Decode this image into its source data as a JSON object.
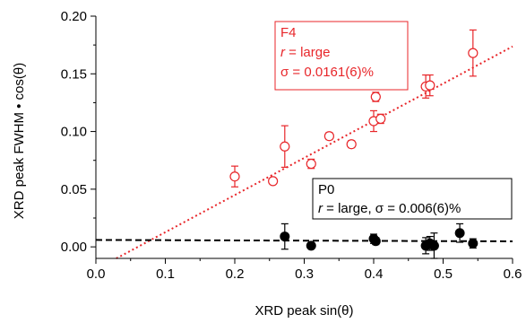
{
  "chart_data": {
    "type": "scatter",
    "xlabel": "XRD peak sin(θ)",
    "ylabel": "XRD peak FWHM • cos(θ)",
    "xlim": [
      0.0,
      0.6
    ],
    "ylim": [
      -0.01,
      0.2
    ],
    "x_ticks": [
      "0.0",
      "0.1",
      "0.2",
      "0.3",
      "0.4",
      "0.5",
      "0.6"
    ],
    "y_ticks": [
      "0.00",
      "0.05",
      "0.10",
      "0.15",
      "0.20"
    ],
    "grid": false,
    "series": [
      {
        "name": "F4",
        "color": "#e8262a",
        "marker": "open-circle",
        "points": [
          {
            "x": 0.2,
            "y": 0.061,
            "err": 0.009
          },
          {
            "x": 0.255,
            "y": 0.057,
            "err": 0.0015
          },
          {
            "x": 0.272,
            "y": 0.087,
            "err": 0.018
          },
          {
            "x": 0.31,
            "y": 0.072,
            "err": 0.004
          },
          {
            "x": 0.336,
            "y": 0.096,
            "err": 0.003
          },
          {
            "x": 0.368,
            "y": 0.089,
            "err": 0.003
          },
          {
            "x": 0.4,
            "y": 0.109,
            "err": 0.009
          },
          {
            "x": 0.403,
            "y": 0.13,
            "err": 0.004
          },
          {
            "x": 0.41,
            "y": 0.111,
            "err": 0.004
          },
          {
            "x": 0.475,
            "y": 0.139,
            "err": 0.01
          },
          {
            "x": 0.481,
            "y": 0.14,
            "err": 0.009
          },
          {
            "x": 0.543,
            "y": 0.168,
            "err": 0.02
          }
        ],
        "fit": {
          "style": "dotted",
          "slope": 0.322,
          "intercept": -0.0195
        }
      },
      {
        "name": "P0",
        "color": "#000000",
        "marker": "filled-circle",
        "points": [
          {
            "x": 0.272,
            "y": 0.009,
            "err": 0.011
          },
          {
            "x": 0.31,
            "y": 0.001,
            "err": 0.002
          },
          {
            "x": 0.4,
            "y": 0.007,
            "err": 0.004
          },
          {
            "x": 0.403,
            "y": 0.005,
            "err": 0.003
          },
          {
            "x": 0.475,
            "y": 0.001,
            "err": 0.007
          },
          {
            "x": 0.481,
            "y": 0.003,
            "err": 0.006
          },
          {
            "x": 0.487,
            "y": 0.001,
            "err": 0.011
          },
          {
            "x": 0.524,
            "y": 0.012,
            "err": 0.008
          },
          {
            "x": 0.543,
            "y": 0.003,
            "err": 0.004
          }
        ],
        "fit": {
          "style": "dashed",
          "slope": -0.002,
          "intercept": 0.006
        }
      }
    ],
    "annotations": [
      {
        "series": "F4",
        "lines": [
          [
            {
              "t": "F4",
              "i": false
            }
          ],
          [
            {
              "t": "r",
              "i": true
            },
            {
              "t": " = large",
              "i": false
            }
          ],
          [
            {
              "t": "σ = 0.0161(6)%",
              "i": false
            }
          ]
        ]
      },
      {
        "series": "P0",
        "lines": [
          [
            {
              "t": "P0",
              "i": false
            }
          ],
          [
            {
              "t": "r",
              "i": true
            },
            {
              "t": " = large, σ = 0.006(6)%",
              "i": false
            }
          ]
        ]
      }
    ]
  }
}
